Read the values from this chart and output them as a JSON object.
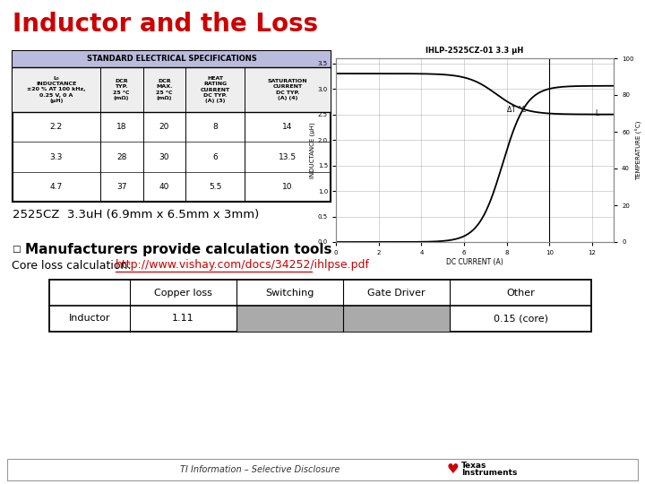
{
  "title": "Inductor and the Loss",
  "title_color": "#CC0000",
  "title_fontsize": 20,
  "bg_color": "#FFFFFF",
  "spec_table_title": "STANDARD ELECTRICAL SPECIFICATIONS",
  "spec_col_headers": [
    "L₀\nINDUCTANCE\n± 20 % AT 100 kHz,\n0.25 V, 0 A\n(μH)",
    "DCR\nTYP.\n25 °C\n(mΩ)",
    "DCR\nMAX.\n25 °C\n(mΩ)",
    "HEAT\nRATING\nCURRENT\nDC TYP.\n(A) (3)",
    "SATURATION\nCURRENT\nDC TYP.\n(A) (4)"
  ],
  "spec_rows": [
    [
      "2.2",
      "18",
      "20",
      "8",
      "14"
    ],
    [
      "3.3",
      "28",
      "30",
      "6",
      "13.5"
    ],
    [
      "4.7",
      "37",
      "40",
      "5.5",
      "10"
    ]
  ],
  "part_label": "2525CZ  3.3uH (6.9mm x 6.5mm x 3mm)",
  "graph_title": "IHLP-2525CZ-01 3.3 μH",
  "graph_xlabel": "DC CURRENT (A)",
  "graph_ylabel_left": "INDUCTANCE (μH)",
  "graph_ylabel_right": "TEMPERATURE (°C)",
  "bullet_text": "Manufacturers provide calculation tools",
  "core_loss_prefix": "Core loss calculation: ",
  "core_loss_url": "http://www.vishay.com/docs/34252/ihlpse.pdf",
  "loss_col_headers": [
    "",
    "Copper loss",
    "Switching",
    "Gate Driver",
    "Other"
  ],
  "loss_row": [
    "Inductor",
    "1.11",
    "",
    "",
    "0.15 (core)"
  ],
  "gray_cols": [
    2,
    3
  ],
  "gray_color": "#AAAAAA",
  "footer_text": "TI Information – Selective Disclosure",
  "ti_text1": "Texas",
  "ti_text2": "Instruments"
}
